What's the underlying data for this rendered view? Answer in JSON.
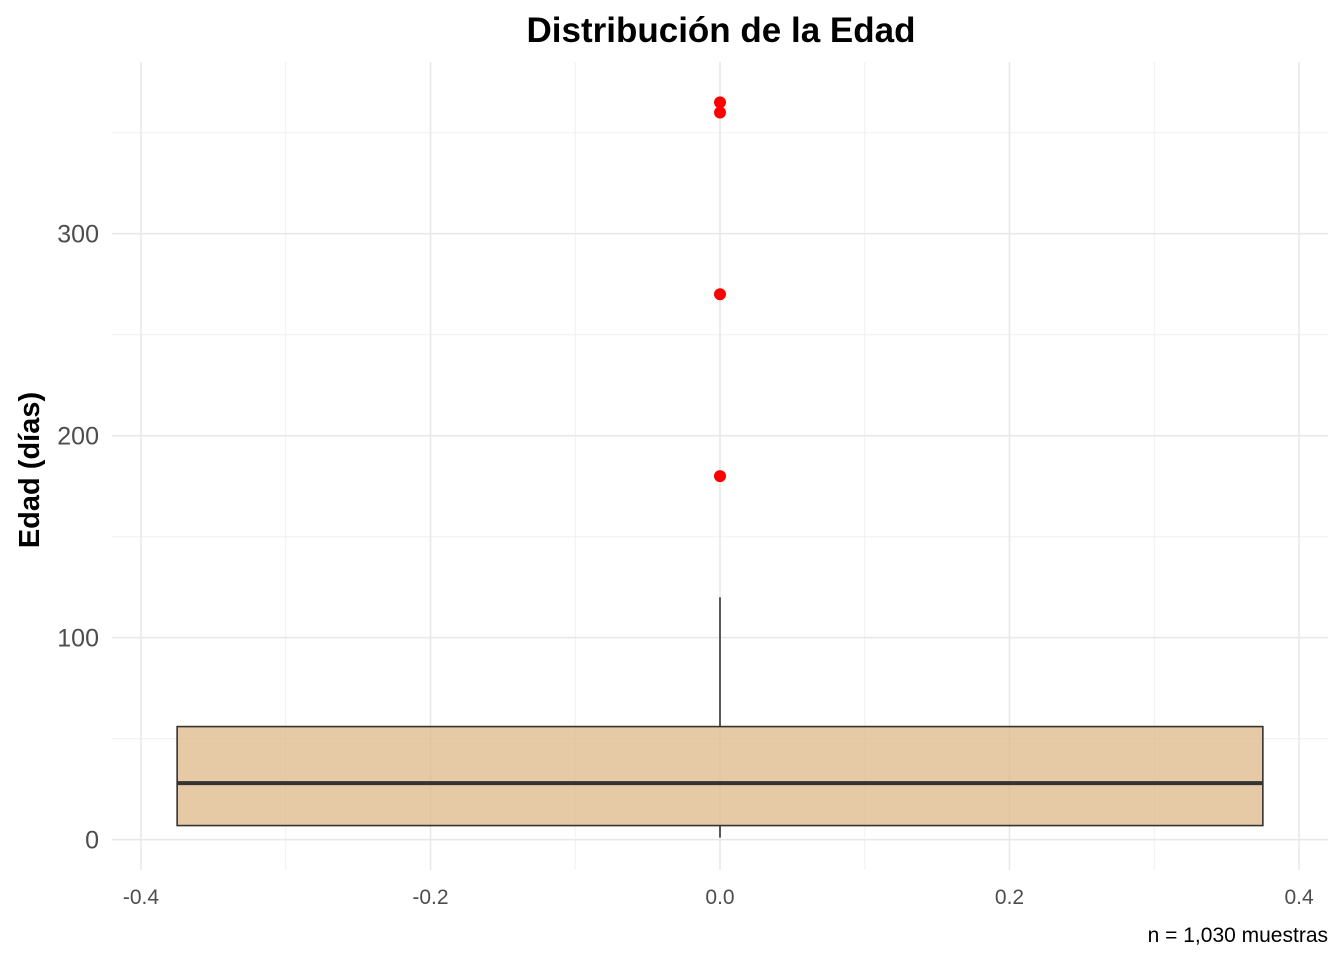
{
  "chart_data": {
    "type": "boxplot",
    "title": "Distribución de la Edad",
    "xlabel": "",
    "ylabel": "Edad (días)",
    "caption": "n = 1,030 muestras",
    "xlim": [
      -0.42,
      0.42
    ],
    "ylim": [
      -15,
      385
    ],
    "x_ticks": [
      -0.4,
      -0.2,
      0.0,
      0.2,
      0.4
    ],
    "x_tick_labels": [
      "-0.4",
      "-0.2",
      "0.0",
      "0.2",
      "0.4"
    ],
    "y_ticks": [
      0,
      100,
      200,
      300
    ],
    "y_tick_labels": [
      "0",
      "100",
      "200",
      "300"
    ],
    "grid": true,
    "box": {
      "x_center": 0.0,
      "x_half_width": 0.375,
      "whisker_low": 1,
      "q1": 7,
      "median": 28,
      "q3": 56,
      "whisker_high": 120,
      "fill": "#deb887",
      "fill_opacity": 0.75,
      "line_color": "#333333"
    },
    "outliers": {
      "values": [
        180,
        270,
        360,
        365
      ],
      "color": "#ff0000"
    }
  }
}
